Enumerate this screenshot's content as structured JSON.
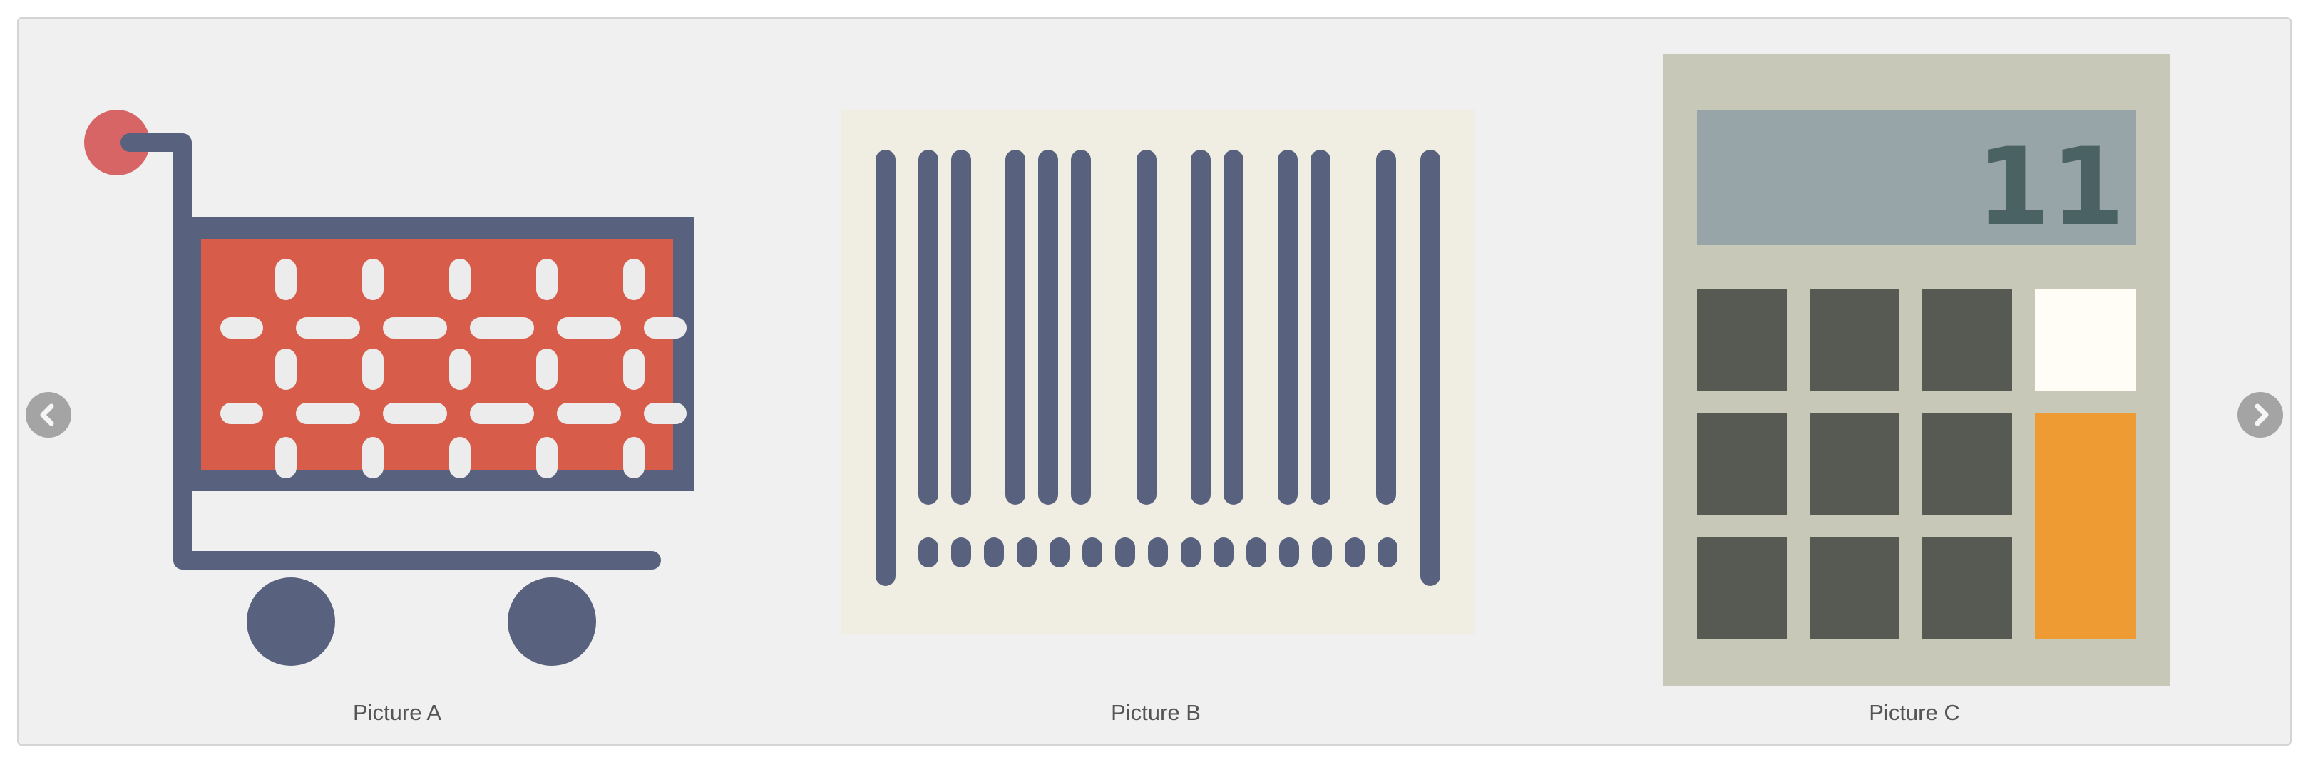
{
  "carousel": {
    "prev_icon": "chevron-left-icon",
    "next_icon": "chevron-right-icon",
    "slides": [
      {
        "caption": "Picture A",
        "icon": "shopping-cart-icon"
      },
      {
        "caption": "Picture B",
        "icon": "barcode-icon"
      },
      {
        "caption": "Picture C",
        "icon": "calculator-icon",
        "display_value": "11"
      }
    ]
  },
  "colors": {
    "background": "#f0f0f0",
    "navy": "#58627e",
    "cart_red": "#d85c4a",
    "barcode_bg": "#f0eee3",
    "calc_body": "#c8c8b9",
    "calc_screen": "#97a4a8",
    "calc_key": "#575a52",
    "calc_accent": "#ef9b33"
  }
}
